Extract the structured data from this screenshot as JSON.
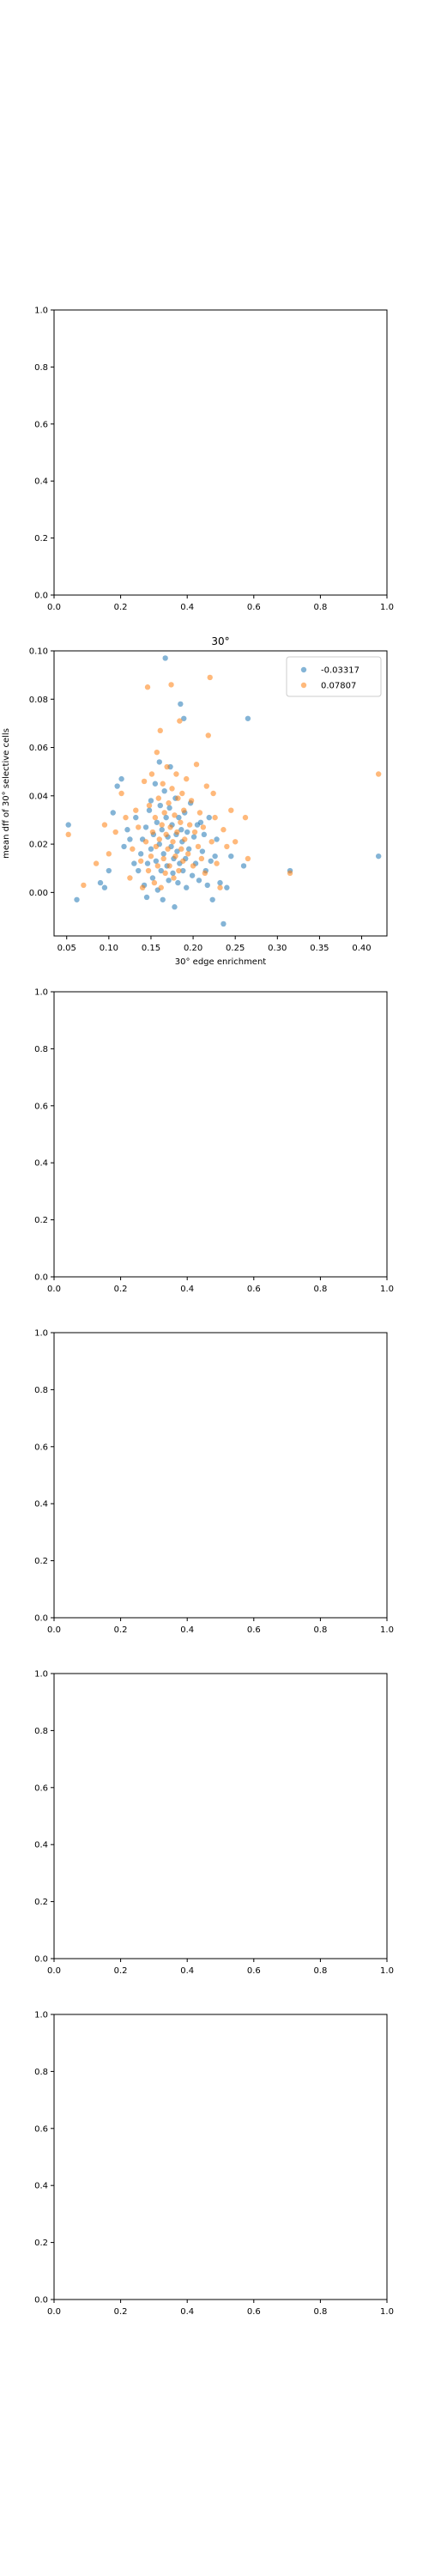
{
  "chart_data": [
    {
      "type": "scatter",
      "title": "",
      "xlabel": "",
      "ylabel": "",
      "xlim": [
        0,
        1
      ],
      "ylim": [
        0,
        1
      ],
      "xticks": [
        "0.0",
        "0.2",
        "0.4",
        "0.6",
        "0.8",
        "1.0"
      ],
      "yticks": [
        "0.0",
        "0.2",
        "0.4",
        "0.6",
        "0.8",
        "1.0"
      ],
      "grid": false,
      "series": []
    },
    {
      "type": "scatter",
      "title": "30°",
      "xlabel": "30° edge enrichment",
      "ylabel": "mean dff of 30° selective cells",
      "xlim": [
        0.035,
        0.43
      ],
      "ylim": [
        -0.018,
        0.1
      ],
      "xticks": [
        "0.05",
        "0.10",
        "0.15",
        "0.20",
        "0.25",
        "0.30",
        "0.35",
        "0.40"
      ],
      "yticks": [
        "0.00",
        "0.02",
        "0.04",
        "0.06",
        "0.08",
        "0.10"
      ],
      "grid": false,
      "legend_position": "top-right",
      "series": [
        {
          "name": "-0.03317",
          "color": "#1f77b4",
          "points": [
            [
              0.052,
              0.028
            ],
            [
              0.062,
              -0.003
            ],
            [
              0.09,
              0.004
            ],
            [
              0.095,
              0.002
            ],
            [
              0.1,
              0.009
            ],
            [
              0.105,
              0.033
            ],
            [
              0.11,
              0.044
            ],
            [
              0.115,
              0.047
            ],
            [
              0.118,
              0.019
            ],
            [
              0.122,
              0.026
            ],
            [
              0.125,
              0.022
            ],
            [
              0.13,
              0.012
            ],
            [
              0.132,
              0.031
            ],
            [
              0.135,
              0.009
            ],
            [
              0.138,
              0.016
            ],
            [
              0.14,
              0.022
            ],
            [
              0.142,
              0.003
            ],
            [
              0.144,
              0.027
            ],
            [
              0.145,
              -0.002
            ],
            [
              0.146,
              0.012
            ],
            [
              0.148,
              0.034
            ],
            [
              0.15,
              0.038
            ],
            [
              0.15,
              0.018
            ],
            [
              0.152,
              0.006
            ],
            [
              0.153,
              0.024
            ],
            [
              0.155,
              0.045
            ],
            [
              0.156,
              0.013
            ],
            [
              0.157,
              0.029
            ],
            [
              0.158,
              0.001
            ],
            [
              0.16,
              0.054
            ],
            [
              0.16,
              0.02
            ],
            [
              0.161,
              0.036
            ],
            [
              0.162,
              0.009
            ],
            [
              0.163,
              0.026
            ],
            [
              0.164,
              -0.003
            ],
            [
              0.165,
              0.016
            ],
            [
              0.166,
              0.042
            ],
            [
              0.167,
              0.097
            ],
            [
              0.168,
              0.031
            ],
            [
              0.169,
              0.011
            ],
            [
              0.17,
              0.023
            ],
            [
              0.171,
              0.005
            ],
            [
              0.172,
              0.035
            ],
            [
              0.173,
              0.052
            ],
            [
              0.174,
              0.019
            ],
            [
              0.175,
              0.028
            ],
            [
              0.176,
              0.008
            ],
            [
              0.177,
              0.014
            ],
            [
              0.178,
              -0.006
            ],
            [
              0.179,
              0.039
            ],
            [
              0.18,
              0.024
            ],
            [
              0.181,
              0.017
            ],
            [
              0.182,
              0.004
            ],
            [
              0.183,
              0.031
            ],
            [
              0.184,
              0.012
            ],
            [
              0.185,
              0.078
            ],
            [
              0.186,
              0.026
            ],
            [
              0.187,
              0.021
            ],
            [
              0.188,
              0.009
            ],
            [
              0.189,
              0.072
            ],
            [
              0.19,
              0.033
            ],
            [
              0.191,
              0.014
            ],
            [
              0.192,
              0.002
            ],
            [
              0.193,
              0.025
            ],
            [
              0.195,
              0.018
            ],
            [
              0.197,
              0.037
            ],
            [
              0.199,
              0.007
            ],
            [
              0.201,
              0.023
            ],
            [
              0.203,
              0.012
            ],
            [
              0.205,
              0.028
            ],
            [
              0.207,
              0.005
            ],
            [
              0.209,
              0.029
            ],
            [
              0.211,
              0.017
            ],
            [
              0.213,
              0.024
            ],
            [
              0.215,
              0.009
            ],
            [
              0.217,
              0.003
            ],
            [
              0.219,
              0.031
            ],
            [
              0.221,
              0.013
            ],
            [
              0.223,
              -0.003
            ],
            [
              0.226,
              0.015
            ],
            [
              0.228,
              0.022
            ],
            [
              0.232,
              0.004
            ],
            [
              0.236,
              -0.013
            ],
            [
              0.24,
              0.002
            ],
            [
              0.245,
              0.015
            ],
            [
              0.26,
              0.011
            ],
            [
              0.265,
              0.072
            ],
            [
              0.315,
              0.009
            ],
            [
              0.42,
              0.015
            ]
          ]
        },
        {
          "name": "0.07807",
          "color": "#ff7f0e",
          "points": [
            [
              0.052,
              0.024
            ],
            [
              0.07,
              0.003
            ],
            [
              0.085,
              0.012
            ],
            [
              0.095,
              0.028
            ],
            [
              0.1,
              0.016
            ],
            [
              0.108,
              0.025
            ],
            [
              0.115,
              0.041
            ],
            [
              0.12,
              0.031
            ],
            [
              0.125,
              0.006
            ],
            [
              0.128,
              0.018
            ],
            [
              0.132,
              0.034
            ],
            [
              0.135,
              0.027
            ],
            [
              0.138,
              0.013
            ],
            [
              0.14,
              0.002
            ],
            [
              0.142,
              0.046
            ],
            [
              0.144,
              0.021
            ],
            [
              0.146,
              0.085
            ],
            [
              0.147,
              0.009
            ],
            [
              0.148,
              0.036
            ],
            [
              0.15,
              0.015
            ],
            [
              0.151,
              0.049
            ],
            [
              0.152,
              0.025
            ],
            [
              0.154,
              0.004
            ],
            [
              0.155,
              0.031
            ],
            [
              0.156,
              0.019
            ],
            [
              0.157,
              0.058
            ],
            [
              0.158,
              0.011
            ],
            [
              0.159,
              0.039
            ],
            [
              0.16,
              0.022
            ],
            [
              0.161,
              0.067
            ],
            [
              0.162,
              0.002
            ],
            [
              0.163,
              0.028
            ],
            [
              0.164,
              0.045
            ],
            [
              0.165,
              0.014
            ],
            [
              0.166,
              0.033
            ],
            [
              0.167,
              0.008
            ],
            [
              0.168,
              0.024
            ],
            [
              0.169,
              0.052
            ],
            [
              0.17,
              0.018
            ],
            [
              0.171,
              0.037
            ],
            [
              0.172,
              0.011
            ],
            [
              0.173,
              0.027
            ],
            [
              0.174,
              0.086
            ],
            [
              0.175,
              0.043
            ],
            [
              0.176,
              0.021
            ],
            [
              0.177,
              0.006
            ],
            [
              0.178,
              0.032
            ],
            [
              0.179,
              0.015
            ],
            [
              0.18,
              0.049
            ],
            [
              0.181,
              0.025
            ],
            [
              0.182,
              0.039
            ],
            [
              0.183,
              0.009
            ],
            [
              0.184,
              0.071
            ],
            [
              0.185,
              0.029
            ],
            [
              0.186,
              0.018
            ],
            [
              0.187,
              0.041
            ],
            [
              0.188,
              0.013
            ],
            [
              0.189,
              0.034
            ],
            [
              0.19,
              0.022
            ],
            [
              0.192,
              0.047
            ],
            [
              0.194,
              0.016
            ],
            [
              0.196,
              0.028
            ],
            [
              0.198,
              0.038
            ],
            [
              0.2,
              0.011
            ],
            [
              0.202,
              0.025
            ],
            [
              0.204,
              0.053
            ],
            [
              0.206,
              0.019
            ],
            [
              0.208,
              0.033
            ],
            [
              0.21,
              0.014
            ],
            [
              0.212,
              0.027
            ],
            [
              0.214,
              0.008
            ],
            [
              0.216,
              0.044
            ],
            [
              0.218,
              0.065
            ],
            [
              0.22,
              0.089
            ],
            [
              0.222,
              0.021
            ],
            [
              0.224,
              0.041
            ],
            [
              0.226,
              0.031
            ],
            [
              0.228,
              0.012
            ],
            [
              0.232,
              0.002
            ],
            [
              0.236,
              0.026
            ],
            [
              0.24,
              0.019
            ],
            [
              0.245,
              0.034
            ],
            [
              0.25,
              0.021
            ],
            [
              0.262,
              0.031
            ],
            [
              0.265,
              0.014
            ],
            [
              0.315,
              0.008
            ],
            [
              0.42,
              0.049
            ]
          ]
        }
      ]
    },
    {
      "type": "scatter",
      "title": "",
      "xlabel": "",
      "ylabel": "",
      "xlim": [
        0,
        1
      ],
      "ylim": [
        0,
        1
      ],
      "xticks": [
        "0.0",
        "0.2",
        "0.4",
        "0.6",
        "0.8",
        "1.0"
      ],
      "yticks": [
        "0.0",
        "0.2",
        "0.4",
        "0.6",
        "0.8",
        "1.0"
      ],
      "grid": false,
      "series": []
    },
    {
      "type": "scatter",
      "title": "",
      "xlabel": "",
      "ylabel": "",
      "xlim": [
        0,
        1
      ],
      "ylim": [
        0,
        1
      ],
      "xticks": [
        "0.0",
        "0.2",
        "0.4",
        "0.6",
        "0.8",
        "1.0"
      ],
      "yticks": [
        "0.0",
        "0.2",
        "0.4",
        "0.6",
        "0.8",
        "1.0"
      ],
      "grid": false,
      "series": []
    },
    {
      "type": "scatter",
      "title": "",
      "xlabel": "",
      "ylabel": "",
      "xlim": [
        0,
        1
      ],
      "ylim": [
        0,
        1
      ],
      "xticks": [
        "0.0",
        "0.2",
        "0.4",
        "0.6",
        "0.8",
        "1.0"
      ],
      "yticks": [
        "0.0",
        "0.2",
        "0.4",
        "0.6",
        "0.8",
        "1.0"
      ],
      "grid": false,
      "series": []
    },
    {
      "type": "scatter",
      "title": "",
      "xlabel": "",
      "ylabel": "",
      "xlim": [
        0,
        1
      ],
      "ylim": [
        0,
        1
      ],
      "xticks": [
        "0.0",
        "0.2",
        "0.4",
        "0.6",
        "0.8",
        "1.0"
      ],
      "yticks": [
        "0.0",
        "0.2",
        "0.4",
        "0.6",
        "0.8",
        "1.0"
      ],
      "grid": false,
      "series": []
    }
  ]
}
